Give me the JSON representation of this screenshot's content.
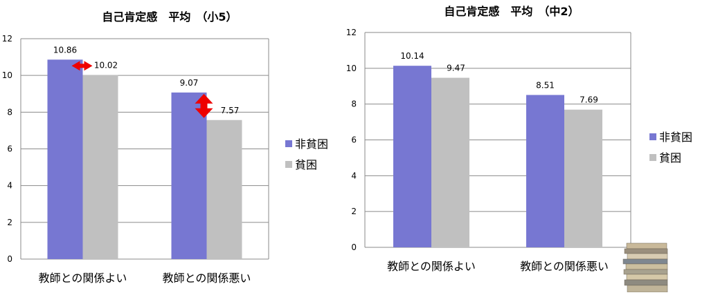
{
  "colors": {
    "non_poor": "#7777d2",
    "poor": "#c0c0c0",
    "accent_arrow": "#ee0000",
    "grid": "#8a8a8a"
  },
  "decorations": {
    "book_stack_icon": "book-stack-icon",
    "gap_arrow_icon": "double-arrow-icon"
  },
  "chart_data": [
    {
      "type": "bar",
      "title": "自己肯定感　平均　（小5）",
      "categories": [
        "教師との関係よい",
        "教師との関係悪い"
      ],
      "series": [
        {
          "name": "非貧困",
          "values": [
            10.86,
            9.07
          ]
        },
        {
          "name": "貧困",
          "values": [
            10.02,
            7.57
          ]
        }
      ],
      "ylim": [
        0,
        12
      ],
      "yticks": [
        "0",
        "2",
        "4",
        "6",
        "8",
        "10",
        "12"
      ],
      "data_labels": [
        [
          "10.86",
          "9.07"
        ],
        [
          "10.02",
          "7.57"
        ]
      ],
      "grid": true,
      "legend": "right"
    },
    {
      "type": "bar",
      "title": "自己肯定感　平均　（中2）",
      "categories": [
        "教師との関係よい",
        "教師との関係悪い"
      ],
      "series": [
        {
          "name": "非貧困",
          "values": [
            10.14,
            8.51
          ]
        },
        {
          "name": "貧困",
          "values": [
            9.47,
            7.69
          ]
        }
      ],
      "ylim": [
        0,
        12
      ],
      "yticks": [
        "0",
        "2",
        "4",
        "6",
        "8",
        "10",
        "12"
      ],
      "data_labels": [
        [
          "10.14",
          "8.51"
        ],
        [
          "9.47",
          "7.69"
        ]
      ],
      "grid": true,
      "legend": "right"
    }
  ]
}
